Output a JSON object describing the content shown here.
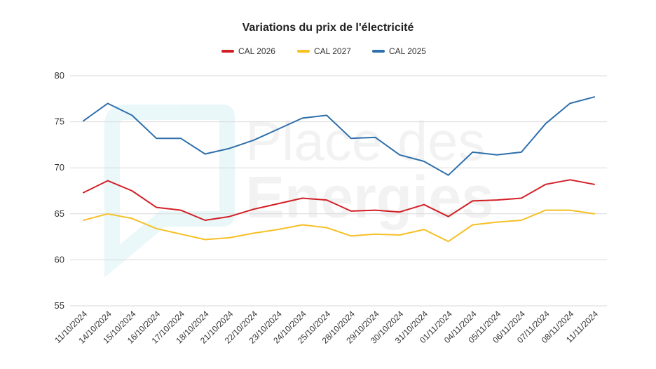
{
  "chart_data": {
    "type": "line",
    "title": "Variations du prix de l'électricité",
    "xlabel": "",
    "ylabel": "",
    "ylim": [
      55,
      80
    ],
    "yticks": [
      55,
      60,
      65,
      70,
      75,
      80
    ],
    "grid": true,
    "legend_position": "top",
    "categories": [
      "11/10/2024",
      "14/10/2024",
      "15/10/2024",
      "16/10/2024",
      "17/10/2024",
      "18/10/2024",
      "21/10/2024",
      "22/10/2024",
      "23/10/2024",
      "24/10/2024",
      "25/10/2024",
      "28/10/2024",
      "29/10/2024",
      "30/10/2024",
      "31/10/2024",
      "01/11/2024",
      "04/11/2024",
      "05/11/2024",
      "06/11/2024",
      "07/11/2024",
      "08/11/2024",
      "11/11/2024"
    ],
    "series": [
      {
        "name": "CAL 2026",
        "color": "#d21f26",
        "values": [
          67.3,
          68.6,
          67.5,
          65.7,
          65.4,
          64.3,
          64.7,
          65.5,
          66.1,
          66.7,
          66.5,
          65.3,
          65.4,
          65.2,
          66.0,
          64.7,
          66.4,
          66.5,
          66.7,
          68.2,
          68.7,
          68.2
        ]
      },
      {
        "name": "CAL 2027",
        "color": "#f6c026",
        "values": [
          64.3,
          65.0,
          64.5,
          63.4,
          62.8,
          62.2,
          62.4,
          62.9,
          63.3,
          63.8,
          63.5,
          62.6,
          62.8,
          62.7,
          63.3,
          62.0,
          63.8,
          64.1,
          64.3,
          65.4,
          65.4,
          65.0
        ]
      },
      {
        "name": "CAL 2025",
        "color": "#2f6fab",
        "values": [
          75.1,
          77.0,
          75.7,
          73.2,
          73.2,
          71.5,
          72.1,
          73.0,
          74.2,
          75.4,
          75.7,
          73.2,
          73.3,
          71.4,
          70.7,
          69.2,
          71.7,
          71.4,
          71.7,
          74.8,
          77.0,
          77.7
        ]
      }
    ]
  },
  "watermark": {
    "line1": "Place des",
    "line2": "Energies",
    "color": "#2fb8c9"
  }
}
